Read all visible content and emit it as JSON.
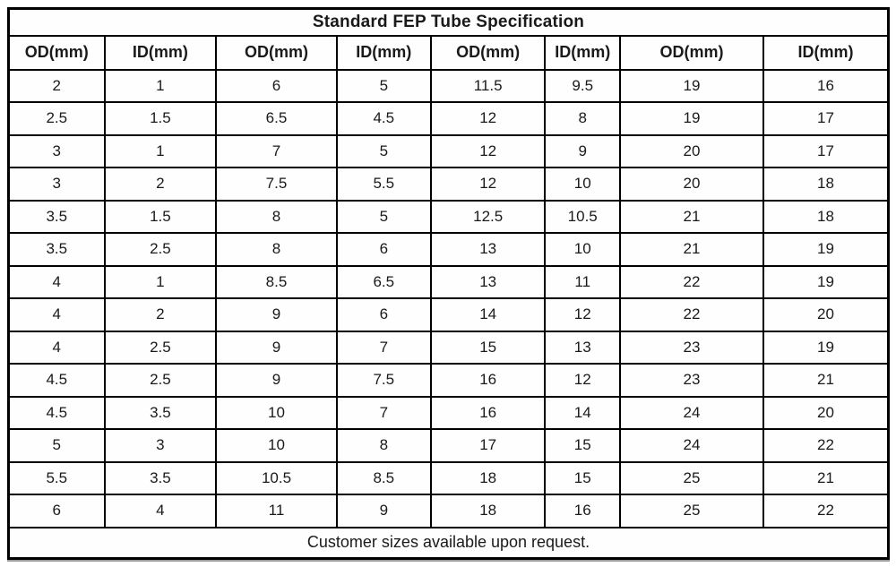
{
  "title": "Standard FEP Tube Specification",
  "columns": [
    "OD(mm)",
    "ID(mm)",
    "OD(mm)",
    "ID(mm)",
    "OD(mm)",
    "ID(mm)",
    "OD(mm)",
    "ID(mm)"
  ],
  "rows": [
    [
      "2",
      "1",
      "6",
      "5",
      "11.5",
      "9.5",
      "19",
      "16"
    ],
    [
      "2.5",
      "1.5",
      "6.5",
      "4.5",
      "12",
      "8",
      "19",
      "17"
    ],
    [
      "3",
      "1",
      "7",
      "5",
      "12",
      "9",
      "20",
      "17"
    ],
    [
      "3",
      "2",
      "7.5",
      "5.5",
      "12",
      "10",
      "20",
      "18"
    ],
    [
      "3.5",
      "1.5",
      "8",
      "5",
      "12.5",
      "10.5",
      "21",
      "18"
    ],
    [
      "3.5",
      "2.5",
      "8",
      "6",
      "13",
      "10",
      "21",
      "19"
    ],
    [
      "4",
      "1",
      "8.5",
      "6.5",
      "13",
      "11",
      "22",
      "19"
    ],
    [
      "4",
      "2",
      "9",
      "6",
      "14",
      "12",
      "22",
      "20"
    ],
    [
      "4",
      "2.5",
      "9",
      "7",
      "15",
      "13",
      "23",
      "19"
    ],
    [
      "4.5",
      "2.5",
      "9",
      "7.5",
      "16",
      "12",
      "23",
      "21"
    ],
    [
      "4.5",
      "3.5",
      "10",
      "7",
      "16",
      "14",
      "24",
      "20"
    ],
    [
      "5",
      "3",
      "10",
      "8",
      "17",
      "15",
      "24",
      "22"
    ],
    [
      "5.5",
      "3.5",
      "10.5",
      "8.5",
      "18",
      "15",
      "25",
      "21"
    ],
    [
      "6",
      "4",
      "11",
      "9",
      "18",
      "16",
      "25",
      "22"
    ]
  ],
  "footer": "Customer sizes available upon request.",
  "colors": {
    "border": "#000000",
    "text": "#1a1a1a",
    "background": "#ffffff"
  }
}
